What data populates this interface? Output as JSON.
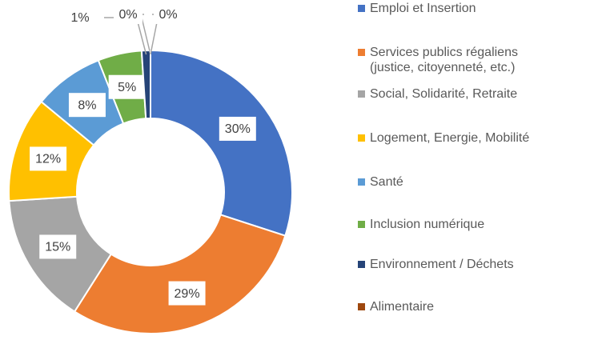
{
  "chart_data": {
    "type": "pie",
    "categories": [
      "Emploi et Insertion",
      "Services publics régaliens (justice, citoyenneté, etc.)",
      "Social, Solidarité, Retraite",
      "Logement, Energie, Mobilité",
      "Santé",
      "Inclusion numérique",
      "Environnement / Déchets",
      "Alimentaire",
      null
    ],
    "values": [
      30,
      29,
      15,
      12,
      8,
      5,
      1,
      0,
      0
    ],
    "value_labels": [
      "30%",
      "29%",
      "15%",
      "12%",
      "8%",
      "5%",
      "1%",
      "0%",
      "0%"
    ],
    "colors": [
      "#4472c4",
      "#ed7d31",
      "#a5a5a5",
      "#ffc000",
      "#5b9bd5",
      "#70ad47",
      "#264478",
      "#9e480e",
      "#dae3f3"
    ],
    "legend": "right"
  }
}
